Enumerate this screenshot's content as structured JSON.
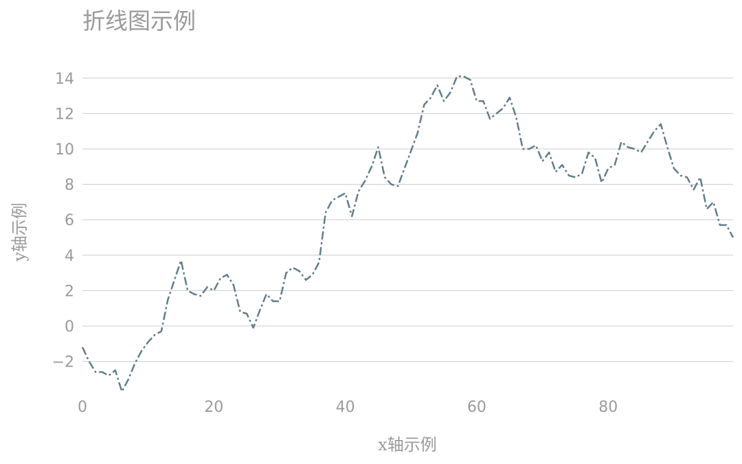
{
  "chart_data": {
    "type": "line",
    "title": "折线图示例",
    "xlabel": "x轴示例",
    "ylabel": "y轴示例",
    "xlim": [
      0,
      99
    ],
    "ylim": [
      -3.8,
      15
    ],
    "xticks": [
      0,
      20,
      40,
      60,
      80
    ],
    "yticks": [
      -2,
      0,
      2,
      4,
      6,
      8,
      10,
      12,
      14
    ],
    "xtick_labels": [
      "0",
      "20",
      "40",
      "60",
      "80"
    ],
    "ytick_labels": [
      "−2",
      "0",
      "2",
      "4",
      "6",
      "8",
      "10",
      "12",
      "14"
    ],
    "grid": "horizontal",
    "line_color": "#607d8b",
    "line_style": "dash-dot",
    "series": [
      {
        "x": [
          0,
          1,
          2,
          3,
          4,
          5,
          6,
          7,
          8,
          9,
          10,
          11,
          12,
          13,
          14,
          15,
          16,
          17,
          18,
          19,
          20,
          21,
          22,
          23,
          24,
          25,
          26,
          27,
          28,
          29,
          30,
          31,
          32,
          33,
          34,
          35,
          36,
          37,
          38,
          39,
          40,
          41,
          42,
          43,
          44,
          45,
          46,
          47,
          48,
          49,
          50,
          51,
          52,
          53,
          54,
          55,
          56,
          57,
          58,
          59,
          60,
          61,
          62,
          63,
          64,
          65,
          66,
          67,
          68,
          69,
          70,
          71,
          72,
          73,
          74,
          75,
          76,
          77,
          78,
          79,
          80,
          81,
          82,
          83,
          84,
          85,
          86,
          87,
          88,
          89,
          90,
          91,
          92,
          93,
          94,
          95,
          96,
          97,
          98,
          99
        ],
        "values": [
          -1.2,
          -2.0,
          -2.6,
          -2.6,
          -2.8,
          -2.5,
          -3.7,
          -3.0,
          -2.1,
          -1.4,
          -0.9,
          -0.5,
          -0.3,
          1.5,
          2.6,
          3.7,
          2.0,
          1.8,
          1.7,
          2.2,
          2.0,
          2.7,
          2.9,
          2.3,
          0.8,
          0.7,
          -0.1,
          0.9,
          1.8,
          1.4,
          1.4,
          3.0,
          3.3,
          3.1,
          2.6,
          2.9,
          3.6,
          6.4,
          7.1,
          7.3,
          7.5,
          6.2,
          7.6,
          8.2,
          9.0,
          10.1,
          8.4,
          8.0,
          7.9,
          8.9,
          9.9,
          10.9,
          12.5,
          12.9,
          13.6,
          12.7,
          13.2,
          14.1,
          14.1,
          13.9,
          12.7,
          12.7,
          11.7,
          12.0,
          12.3,
          12.9,
          11.8,
          10.0,
          10.0,
          10.2,
          9.3,
          9.8,
          8.7,
          9.1,
          8.5,
          8.4,
          8.6,
          9.8,
          9.5,
          8.1,
          8.9,
          9.1,
          10.4,
          10.1,
          10.0,
          9.8,
          10.4,
          11.0,
          11.4,
          10.1,
          8.9,
          8.5,
          8.4,
          7.7,
          8.4,
          6.6,
          7.0,
          5.7,
          5.7,
          5.0
        ]
      }
    ]
  }
}
